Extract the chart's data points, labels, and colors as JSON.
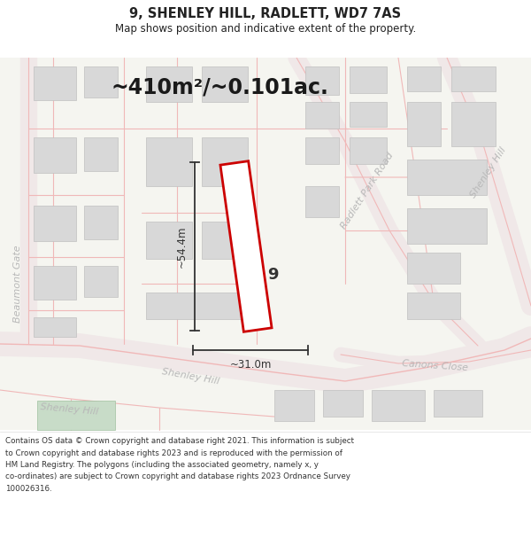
{
  "title_line1": "9, SHENLEY HILL, RADLETT, WD7 7AS",
  "title_line2": "Map shows position and indicative extent of the property.",
  "area_text": "~410m²/~0.101ac.",
  "dim_width": "~31.0m",
  "dim_height": "~54.4m",
  "property_number": "9",
  "footer_lines": [
    "Contains OS data © Crown copyright and database right 2021. This information is subject",
    "to Crown copyright and database rights 2023 and is reproduced with the permission of",
    "HM Land Registry. The polygons (including the associated geometry, namely x, y",
    "co-ordinates) are subject to Crown copyright and database rights 2023 Ordnance Survey",
    "100026316."
  ],
  "bg_color": "#f5f5f0",
  "road_color": "#f0b8b8",
  "road_fill": "#f0e8e8",
  "building_color": "#d8d8d8",
  "building_edge": "#c0c0c0",
  "property_outline_color": "#cc0000",
  "property_fill_color": "#ffffff",
  "text_color": "#333333",
  "road_label_color": "#b8b8b8",
  "dim_line_color": "#333333",
  "header_color": "#222222",
  "footer_color": "#333333",
  "green_fill": "#c8dcc8",
  "green_edge": "#a0c0a0"
}
